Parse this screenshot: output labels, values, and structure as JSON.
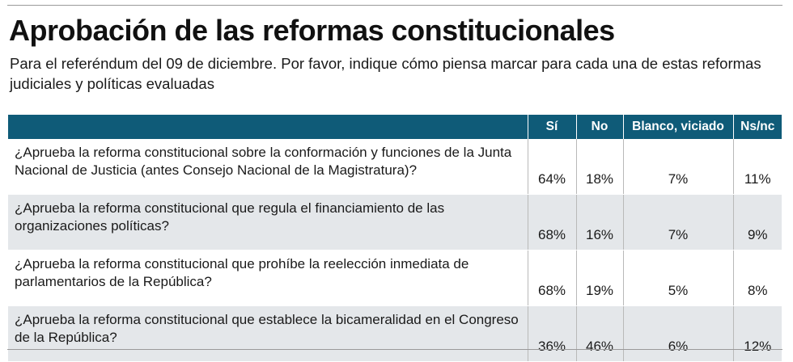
{
  "title": "Aprobación de las reformas constitucionales",
  "subtitle": "Para el referéndum del 09 de diciembre. Por favor, indique cómo piensa marcar para cada una de estas reformas judiciales y políticas evaluadas",
  "colors": {
    "header_bg": "#0f5b78",
    "alt_row_bg": "#e4e7ea",
    "rule": "#9a9a9a"
  },
  "chart_data": {
    "type": "table",
    "title": "Aprobación de las reformas constitucionales",
    "subtitle": "Para el referéndum del 09 de diciembre. Por favor, indique cómo piensa marcar para cada una de estas reformas judiciales y políticas evaluadas",
    "columns": [
      "Sí",
      "No",
      "Blanco, viciado",
      "Ns/nc"
    ],
    "rows": [
      {
        "question": "¿Aprueba la reforma constitucional sobre la conformación y funciones de la Junta Nacional de Justicia (antes Consejo Nacional de la Magistratura)?",
        "values": [
          "64%",
          "18%",
          "7%",
          "11%"
        ]
      },
      {
        "question": "¿Aprueba la reforma constitucional que regula el financiamiento de las organizaciones políticas?",
        "values": [
          "68%",
          "16%",
          "7%",
          "9%"
        ]
      },
      {
        "question": "¿Aprueba la reforma constitucional que prohíbe la reelección inmediata de parlamentarios de la República?",
        "values": [
          "68%",
          "19%",
          "5%",
          "8%"
        ]
      },
      {
        "question": "¿Aprueba la reforma constitucional que establece la bicameralidad en el Congreso de la República?",
        "values": [
          "36%",
          "46%",
          "6%",
          "12%"
        ]
      }
    ]
  }
}
